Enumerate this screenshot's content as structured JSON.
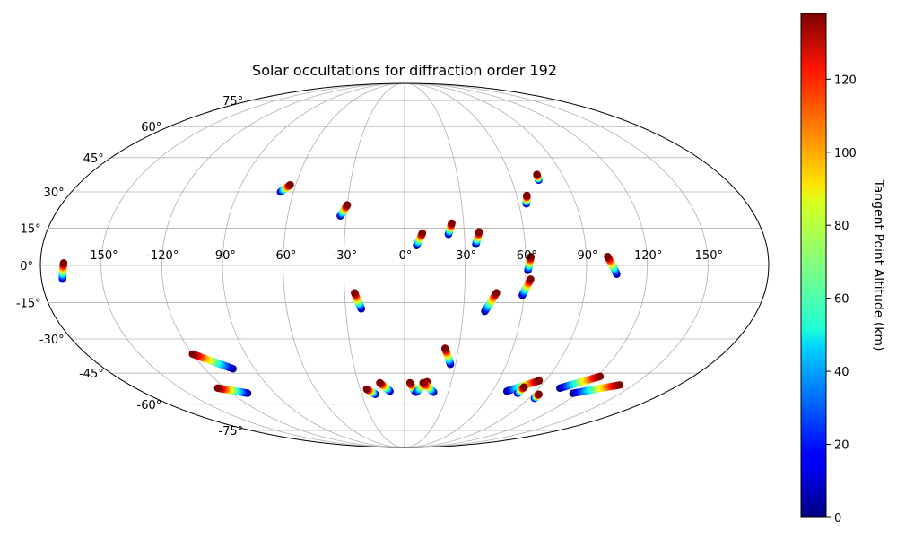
{
  "chart_data": {
    "type": "scatter",
    "projection": "mollweide",
    "title": "Solar occultations for diffraction order 192",
    "xlabel": "",
    "ylabel": "",
    "grid": true,
    "lon_ticks": [
      -150,
      -120,
      -90,
      -60,
      -30,
      0,
      30,
      60,
      90,
      120,
      150
    ],
    "lon_tick_labels": [
      "-150°",
      "-120°",
      "-90°",
      "-60°",
      "-30°",
      "0°",
      "30°",
      "60°",
      "90°",
      "120°",
      "150°"
    ],
    "lat_ticks": [
      -75,
      -60,
      -45,
      -30,
      -15,
      0,
      15,
      30,
      45,
      60,
      75
    ],
    "lat_tick_labels": [
      "-75°",
      "-60°",
      "-45°",
      "-30°",
      "-15°",
      "0°",
      "15°",
      "30°",
      "45°",
      "60°",
      "75°"
    ],
    "colormap": "jet",
    "colorbar": {
      "label": "Tangent Point Altitude (km)",
      "range": [
        0,
        138
      ],
      "ticks": [
        0,
        20,
        40,
        60,
        80,
        100,
        120
      ],
      "tick_labels": [
        "0",
        "20",
        "40",
        "60",
        "80",
        "100",
        "120"
      ]
    },
    "series": [
      {
        "lon": [
          -169.5,
          -168.5
        ],
        "lat": [
          -5.5,
          1.0
        ],
        "alt": [
          0,
          138
        ]
      },
      {
        "lon": [
          -67.0,
          -63.0
        ],
        "lat": [
          30.0,
          33.0
        ],
        "alt": [
          0,
          138
        ]
      },
      {
        "lon": [
          -33.0,
          -30.0
        ],
        "lat": [
          20.0,
          24.5
        ],
        "alt": [
          0,
          138
        ]
      },
      {
        "lon": [
          6.0,
          9.0
        ],
        "lat": [
          8.0,
          13.0
        ],
        "alt": [
          0,
          138
        ]
      },
      {
        "lon": [
          22.0,
          24.0
        ],
        "lat": [
          12.5,
          17.0
        ],
        "alt": [
          0,
          138
        ]
      },
      {
        "lon": [
          35.5,
          37.5
        ],
        "lat": [
          8.5,
          13.5
        ],
        "alt": [
          0,
          138
        ]
      },
      {
        "lon": [
          64.0,
          65.5
        ],
        "lat": [
          25.0,
          28.5
        ],
        "alt": [
          0,
          138
        ]
      },
      {
        "lon": [
          75.0,
          75.5
        ],
        "lat": [
          35.0,
          37.5
        ],
        "alt": [
          0,
          138
        ]
      },
      {
        "lon": [
          61.0,
          62.5
        ],
        "lat": [
          -2.0,
          3.5
        ],
        "alt": [
          0,
          138
        ]
      },
      {
        "lon": [
          105.0,
          100.5
        ],
        "lat": [
          -3.5,
          3.5
        ],
        "alt": [
          0,
          138
        ]
      },
      {
        "lon": [
          59.0,
          62.5
        ],
        "lat": [
          -12.0,
          -5.5
        ],
        "alt": [
          0,
          138
        ]
      },
      {
        "lon": [
          41.0,
          46.0
        ],
        "lat": [
          -18.5,
          -11.0
        ],
        "alt": [
          0,
          138
        ]
      },
      {
        "lon": [
          -22.0,
          -25.0
        ],
        "lat": [
          -17.5,
          -11.0
        ],
        "alt": [
          0,
          138
        ]
      },
      {
        "lon": [
          27.0,
          22.5
        ],
        "lat": [
          -41.0,
          -34.0
        ],
        "alt": [
          0,
          138
        ]
      },
      {
        "lon": [
          -103.0,
          -120.0
        ],
        "lat": [
          -43.0,
          -36.5
        ],
        "alt": [
          0,
          138
        ]
      },
      {
        "lon": [
          -109.0,
          -125.0
        ],
        "lat": [
          -54.5,
          -52.0
        ],
        "alt": [
          0,
          138
        ]
      },
      {
        "lon": [
          -20.5,
          -25.5
        ],
        "lat": [
          -55.0,
          -52.5
        ],
        "alt": [
          0,
          138
        ]
      },
      {
        "lon": [
          -10.0,
          -16.0
        ],
        "lat": [
          -53.5,
          -49.5
        ],
        "alt": [
          0,
          138
        ]
      },
      {
        "lon": [
          7.0,
          3.5
        ],
        "lat": [
          -53.5,
          -49.5
        ],
        "alt": [
          0,
          138
        ]
      },
      {
        "lon": [
          8.0,
          14.5
        ],
        "lat": [
          -54.0,
          -49.0
        ],
        "alt": [
          0,
          138
        ]
      },
      {
        "lon": [
          20.0,
          12.0
        ],
        "lat": [
          -54.0,
          -49.5
        ],
        "alt": [
          0,
          138
        ]
      },
      {
        "lon": [
          70.0,
          86.0
        ],
        "lat": [
          -53.5,
          -48.5
        ],
        "alt": [
          0,
          138
        ]
      },
      {
        "lon": [
          78.5,
          79.5
        ],
        "lat": [
          -54.5,
          -51.5
        ],
        "alt": [
          0,
          138
        ]
      },
      {
        "lon": [
          94.0,
          94.0
        ],
        "lat": [
          -57.0,
          -55.0
        ],
        "alt": [
          0,
          138
        ]
      },
      {
        "lon": [
          104.0,
          122.0
        ],
        "lat": [
          -52.0,
          -46.5
        ],
        "alt": [
          0,
          138
        ]
      },
      {
        "lon": [
          117.0,
          141.0
        ],
        "lat": [
          -54.5,
          -50.5
        ],
        "alt": [
          0,
          138
        ]
      }
    ]
  }
}
